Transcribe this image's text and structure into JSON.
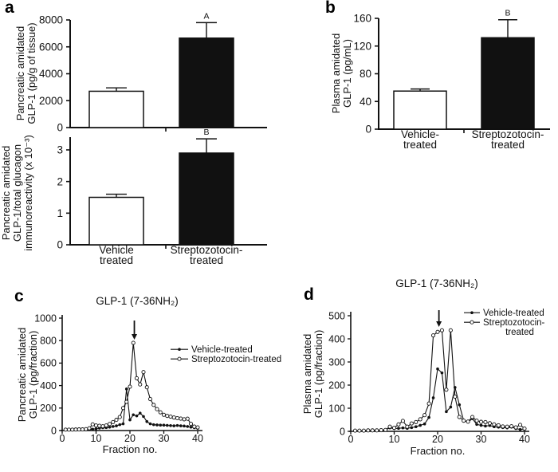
{
  "figure": {
    "panels": [
      {
        "id": "a",
        "letter": "a"
      },
      {
        "id": "b",
        "letter": "b"
      },
      {
        "id": "c",
        "letter": "c"
      },
      {
        "id": "d",
        "letter": "d"
      }
    ]
  },
  "chart_data": [
    {
      "id": "a-top",
      "type": "bar",
      "ylabel_lines": [
        "Pancreatic amidated",
        "GLP-1 (pg/g of tissue)"
      ],
      "ylim": [
        0,
        8000
      ],
      "yticks": [
        0,
        2000,
        4000,
        6000,
        8000
      ],
      "categories": [
        "Vehicle treated",
        "Streptozotocin-treated"
      ],
      "values": [
        2700,
        6650
      ],
      "errors": [
        250,
        1150
      ],
      "sig_labels": [
        "",
        "A"
      ],
      "bar_styles": [
        "open",
        "filled"
      ],
      "show_category_labels": false
    },
    {
      "id": "a-bottom",
      "type": "bar",
      "ylabel_lines": [
        "Pancreatic amidated",
        "GLP-1/total glucagon",
        "immunoreactivity (x 10⁻³)"
      ],
      "ylim": [
        0,
        3.4
      ],
      "yticks": [
        0,
        1,
        2,
        3
      ],
      "categories_lines": [
        [
          "Vehicle",
          "treated"
        ],
        [
          "Streptozotocin-",
          "treated"
        ]
      ],
      "values": [
        1.5,
        2.9
      ],
      "errors": [
        0.1,
        0.45
      ],
      "sig_labels": [
        "",
        "B"
      ],
      "bar_styles": [
        "open",
        "filled"
      ],
      "show_category_labels": true
    },
    {
      "id": "b",
      "type": "bar",
      "ylabel_lines": [
        "Plasma amidated",
        "GLP-1 (pg/mL)"
      ],
      "ylim": [
        0,
        160
      ],
      "yticks": [
        0,
        40,
        80,
        120,
        160
      ],
      "categories_lines": [
        [
          "Vehicle-",
          "treated"
        ],
        [
          "Streptozotocin-",
          "treated"
        ]
      ],
      "values": [
        55,
        132
      ],
      "errors": [
        3,
        26
      ],
      "sig_labels": [
        "",
        "B"
      ],
      "bar_styles": [
        "open",
        "filled"
      ],
      "show_category_labels": true
    },
    {
      "id": "c",
      "type": "line",
      "title": "GLP-1 (7-36NH₂)",
      "ylabel_lines": [
        "Pancreatic amidated",
        "GLP-1 (pg/fraction)"
      ],
      "xlabel": "Fraction no.",
      "ylim": [
        0,
        1000
      ],
      "yticks": [
        0,
        200,
        400,
        600,
        800,
        1000
      ],
      "xlim": [
        0,
        40
      ],
      "xticks": [
        0,
        10,
        20,
        30,
        40
      ],
      "arrow_x": 21.3,
      "series": [
        {
          "name": "Vehicle-treated",
          "marker": "filled",
          "x_start": 1,
          "values": [
            5,
            5,
            5,
            5,
            6,
            6,
            8,
            10,
            12,
            16,
            22,
            25,
            26,
            30,
            36,
            42,
            52,
            60,
            370,
            95,
            140,
            130,
            155,
            125,
            80,
            60,
            52,
            50,
            48,
            48,
            46,
            44,
            42,
            45,
            42,
            40,
            36,
            30,
            25,
            20
          ]
        },
        {
          "name": "Streptozotocin-treated",
          "marker": "open",
          "x_start": 1,
          "values": [
            8,
            8,
            8,
            9,
            10,
            10,
            12,
            20,
            55,
            45,
            42,
            38,
            45,
            58,
            75,
            95,
            120,
            200,
            255,
            390,
            780,
            465,
            410,
            520,
            385,
            280,
            228,
            190,
            162,
            140,
            130,
            124,
            116,
            110,
            106,
            100,
            105,
            60,
            35,
            28
          ]
        }
      ],
      "legend": [
        {
          "lines": [
            "Vehicle-treated"
          ],
          "marker": "filled"
        },
        {
          "lines": [
            "Streptozotocin-treated"
          ],
          "marker": "open"
        }
      ]
    },
    {
      "id": "d",
      "type": "line",
      "title": "GLP-1 (7-36NH₂)",
      "ylabel_lines": [
        "Plasma amidated",
        "GLP-1 (pg/fraction)"
      ],
      "xlabel": "Fraction no.",
      "ylim": [
        0,
        500
      ],
      "yticks": [
        0,
        100,
        200,
        300,
        400,
        500
      ],
      "xlim": [
        0,
        40
      ],
      "xticks": [
        0,
        10,
        20,
        30,
        40
      ],
      "arrow_x": 20.3,
      "series": [
        {
          "name": "Vehicle-treated",
          "marker": "filled",
          "x_start": 1,
          "values": [
            3,
            3,
            3,
            3,
            4,
            4,
            5,
            6,
            15,
            12,
            13,
            15,
            13,
            16,
            20,
            26,
            32,
            60,
            145,
            270,
            253,
            85,
            105,
            190,
            115,
            46,
            40,
            55,
            30,
            26,
            23,
            25,
            20,
            18,
            16,
            15,
            18,
            12,
            8,
            10
          ]
        },
        {
          "name": "Streptozotocin-treated",
          "marker": "open",
          "x_start": 1,
          "values": [
            3,
            3,
            3,
            4,
            4,
            4,
            5,
            6,
            20,
            15,
            30,
            45,
            20,
            34,
            40,
            52,
            70,
            120,
            415,
            430,
            437,
            180,
            437,
            150,
            62,
            46,
            42,
            62,
            46,
            41,
            40,
            35,
            30,
            26,
            21,
            20,
            22,
            17,
            28,
            12
          ]
        }
      ],
      "legend": [
        {
          "lines": [
            "Vehicle-treated"
          ],
          "marker": "filled"
        },
        {
          "lines": [
            "Streptozotocin-",
            "treated"
          ],
          "marker": "open"
        }
      ]
    }
  ]
}
